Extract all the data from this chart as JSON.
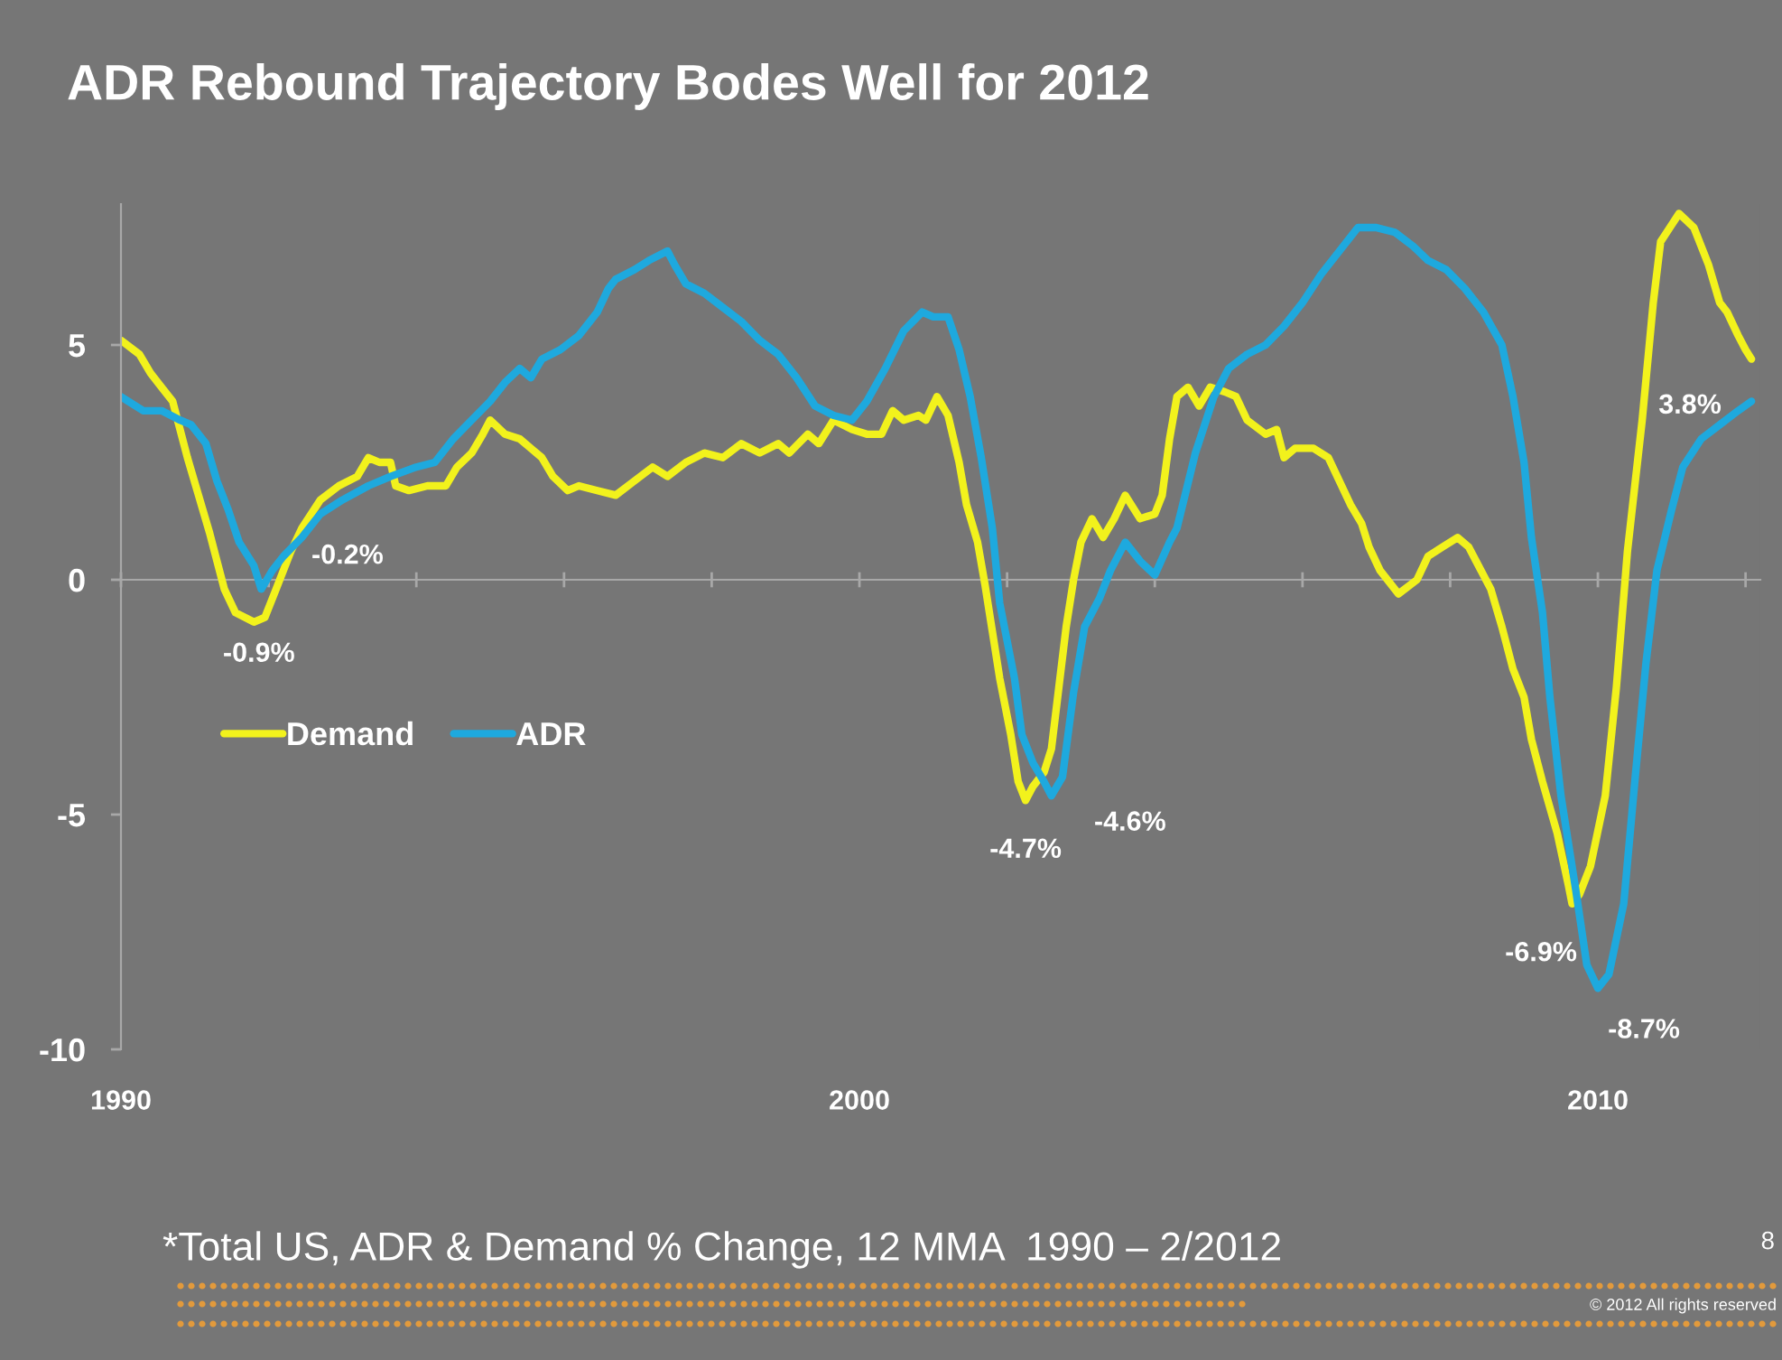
{
  "chart_data": {
    "type": "line",
    "title": "ADR Rebound Trajectory Bodes Well for 2012",
    "xlim": [
      1990,
      2012.2
    ],
    "ylim": [
      -10,
      8
    ],
    "xticks": [
      {
        "value": 1990,
        "label": "1990"
      },
      {
        "value": 1992,
        "label": null
      },
      {
        "value": 1994,
        "label": null
      },
      {
        "value": 1996,
        "label": null
      },
      {
        "value": 1998,
        "label": null
      },
      {
        "value": 2000,
        "label": "2000"
      },
      {
        "value": 2002,
        "label": null
      },
      {
        "value": 2004,
        "label": null
      },
      {
        "value": 2006,
        "label": null
      },
      {
        "value": 2008,
        "label": null
      },
      {
        "value": 2010,
        "label": "2010"
      },
      {
        "value": 2012,
        "label": null
      }
    ],
    "yticks": [
      -10,
      -5,
      0,
      5
    ],
    "legend": "center left",
    "series": [
      {
        "name": "Demand",
        "color": "#f2f21c",
        "x": [
          1990.0,
          1990.25,
          1990.4,
          1990.55,
          1990.7,
          1990.8,
          1990.9,
          1991.05,
          1991.2,
          1991.3,
          1991.4,
          1991.55,
          1991.8,
          1991.95,
          1992.1,
          1992.3,
          1992.45,
          1992.7,
          1992.95,
          1993.2,
          1993.35,
          1993.5,
          1993.65,
          1993.72,
          1993.9,
          1994.15,
          1994.4,
          1994.55,
          1994.75,
          1994.9,
          1995.0,
          1995.2,
          1995.4,
          1995.55,
          1995.7,
          1995.85,
          1996.05,
          1996.2,
          1996.45,
          1996.7,
          1996.95,
          1997.2,
          1997.4,
          1997.65,
          1997.9,
          1998.15,
          1998.4,
          1998.65,
          1998.9,
          1999.05,
          1999.3,
          1999.45,
          1999.65,
          1999.9,
          2000.1,
          2000.3,
          2000.45,
          2000.6,
          2000.8,
          2000.9,
          2001.05,
          2001.2,
          2001.35,
          2001.45,
          2001.6,
          2001.7,
          2001.8,
          2001.9,
          2002.05,
          2002.15,
          2002.25,
          2002.35,
          2002.5,
          2002.6,
          2002.7,
          2002.8,
          2002.9,
          2003.0,
          2003.15,
          2003.3,
          2003.45,
          2003.6,
          2003.8,
          2004.0,
          2004.1,
          2004.2,
          2004.3,
          2004.45,
          2004.6,
          2004.75,
          2004.95,
          2005.1,
          2005.25,
          2005.5,
          2005.65,
          2005.75,
          2005.9,
          2006.15,
          2006.35,
          2006.5,
          2006.65,
          2006.8,
          2006.9,
          2007.05,
          2007.3,
          2007.55,
          2007.7,
          2007.9,
          2008.1,
          2008.25,
          2008.35,
          2008.55,
          2008.7,
          2008.85,
          2009.0,
          2009.1,
          2009.25,
          2009.45,
          2009.6,
          2009.65,
          2009.75,
          2009.9,
          2010.1,
          2010.25,
          2010.4,
          2010.6,
          2010.75,
          2010.85,
          2011.1,
          2011.3,
          2011.5,
          2011.65,
          2011.75,
          2011.9,
          2012.0,
          2012.08
        ],
        "values": [
          5.1,
          4.8,
          4.4,
          4.1,
          3.8,
          3.2,
          2.6,
          1.8,
          1.0,
          0.4,
          -0.2,
          -0.7,
          -0.9,
          -0.8,
          -0.2,
          0.6,
          1.1,
          1.7,
          2.0,
          2.2,
          2.6,
          2.5,
          2.5,
          2.0,
          1.9,
          2.0,
          2.0,
          2.4,
          2.7,
          3.1,
          3.4,
          3.1,
          3.0,
          2.8,
          2.6,
          2.2,
          1.9,
          2.0,
          1.9,
          1.8,
          2.1,
          2.4,
          2.2,
          2.5,
          2.7,
          2.6,
          2.9,
          2.7,
          2.9,
          2.7,
          3.1,
          2.9,
          3.4,
          3.2,
          3.1,
          3.1,
          3.6,
          3.4,
          3.5,
          3.4,
          3.9,
          3.5,
          2.5,
          1.6,
          0.8,
          -0.1,
          -1.1,
          -2.1,
          -3.3,
          -4.3,
          -4.7,
          -4.4,
          -4.1,
          -3.6,
          -2.3,
          -1.0,
          0.0,
          0.8,
          1.3,
          0.9,
          1.3,
          1.8,
          1.3,
          1.4,
          1.8,
          3.0,
          3.9,
          4.1,
          3.7,
          4.1,
          4.0,
          3.9,
          3.4,
          3.1,
          3.2,
          2.6,
          2.8,
          2.8,
          2.6,
          2.1,
          1.6,
          1.2,
          0.7,
          0.2,
          -0.3,
          0.0,
          0.5,
          0.7,
          0.9,
          0.7,
          0.4,
          -0.2,
          -1.0,
          -1.9,
          -2.5,
          -3.4,
          -4.3,
          -5.4,
          -6.5,
          -6.9,
          -6.7,
          -6.1,
          -4.6,
          -2.3,
          0.6,
          3.4,
          5.9,
          7.2,
          7.8,
          7.5,
          6.7,
          5.9,
          5.7,
          5.2,
          4.9,
          4.7
        ]
      },
      {
        "name": "ADR",
        "color": "#1ea9de",
        "x": [
          1990.0,
          1990.3,
          1990.55,
          1990.8,
          1990.95,
          1991.15,
          1991.3,
          1991.45,
          1991.6,
          1991.8,
          1991.9,
          1992.05,
          1992.2,
          1992.45,
          1992.7,
          1993.0,
          1993.35,
          1993.65,
          1994.0,
          1994.25,
          1994.5,
          1994.75,
          1995.0,
          1995.2,
          1995.4,
          1995.55,
          1995.7,
          1995.95,
          1996.2,
          1996.45,
          1996.6,
          1996.7,
          1996.95,
          1997.15,
          1997.4,
          1997.5,
          1997.65,
          1997.9,
          1998.15,
          1998.4,
          1998.65,
          1998.9,
          1999.15,
          1999.4,
          1999.65,
          1999.9,
          2000.1,
          2000.35,
          2000.6,
          2000.85,
          2001.0,
          2001.2,
          2001.35,
          2001.5,
          2001.65,
          2001.8,
          2001.9,
          2002.1,
          2002.2,
          2002.35,
          2002.5,
          2002.6,
          2002.75,
          2002.9,
          2003.05,
          2003.25,
          2003.4,
          2003.6,
          2003.8,
          2004.0,
          2004.2,
          2004.3,
          2004.55,
          2004.8,
          2005.0,
          2005.25,
          2005.5,
          2005.75,
          2006.0,
          2006.25,
          2006.5,
          2006.75,
          2007.0,
          2007.25,
          2007.5,
          2007.7,
          2007.95,
          2008.2,
          2008.45,
          2008.7,
          2008.85,
          2009.0,
          2009.1,
          2009.25,
          2009.35,
          2009.5,
          2009.7,
          2009.85,
          2010.0,
          2010.15,
          2010.35,
          2010.5,
          2010.65,
          2010.8,
          2011.0,
          2011.15,
          2011.4,
          2011.65,
          2011.9,
          2012.08
        ],
        "values": [
          3.9,
          3.6,
          3.6,
          3.4,
          3.3,
          2.9,
          2.1,
          1.5,
          0.8,
          0.3,
          -0.2,
          0.2,
          0.5,
          0.9,
          1.4,
          1.7,
          2.0,
          2.2,
          2.4,
          2.5,
          3.0,
          3.4,
          3.8,
          4.2,
          4.5,
          4.3,
          4.7,
          4.9,
          5.2,
          5.7,
          6.2,
          6.4,
          6.6,
          6.8,
          7.0,
          6.7,
          6.3,
          6.1,
          5.8,
          5.5,
          5.1,
          4.8,
          4.3,
          3.7,
          3.5,
          3.4,
          3.8,
          4.5,
          5.3,
          5.7,
          5.6,
          5.6,
          4.9,
          3.9,
          2.6,
          1.1,
          -0.5,
          -2.1,
          -3.3,
          -3.9,
          -4.3,
          -4.6,
          -4.2,
          -2.4,
          -1.0,
          -0.4,
          0.2,
          0.8,
          0.4,
          0.1,
          0.8,
          1.1,
          2.7,
          3.9,
          4.5,
          4.8,
          5.0,
          5.4,
          5.9,
          6.5,
          7.0,
          7.5,
          7.5,
          7.4,
          7.1,
          6.8,
          6.6,
          6.2,
          5.7,
          5.0,
          3.9,
          2.5,
          0.9,
          -0.7,
          -2.5,
          -4.6,
          -6.6,
          -8.2,
          -8.7,
          -8.4,
          -6.9,
          -4.3,
          -1.8,
          0.2,
          1.5,
          2.4,
          3.0,
          3.3,
          3.6,
          3.8
        ]
      }
    ],
    "annotations": [
      {
        "text": "-0.9%",
        "x": 1991.8,
        "y": -0.9
      },
      {
        "text": "-0.2%",
        "x": 1991.9,
        "y": -0.2
      },
      {
        "text": "-4.7%",
        "x": 2002.25,
        "y": -4.7
      },
      {
        "text": "-4.6%",
        "x": 2002.6,
        "y": -4.6
      },
      {
        "text": "-6.9%",
        "x": 2009.65,
        "y": -6.9
      },
      {
        "text": "-8.7%",
        "x": 2010.0,
        "y": -8.7
      },
      {
        "text": "3.8%",
        "x": 2012.08,
        "y": 3.8
      },
      "*Total US, ADR & Demand % Change, 12 MMA  1990 – 2/2012",
      "8",
      "© 2012 All rights reserved"
    ]
  }
}
